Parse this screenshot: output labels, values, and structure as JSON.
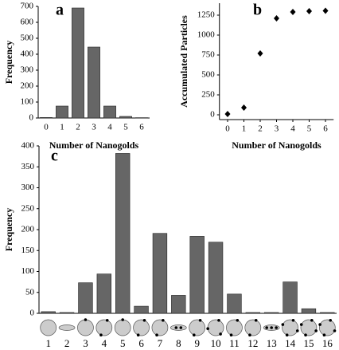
{
  "chart_data": [
    {
      "type": "bar",
      "label": "a",
      "xlabel": "Number of Nanogolds",
      "ylabel": "Frequency",
      "categories": [
        "0",
        "1",
        "2",
        "3",
        "4",
        "5",
        "6"
      ],
      "values": [
        3,
        75,
        690,
        445,
        75,
        10,
        2
      ],
      "color": "#666666",
      "ylim": [
        0,
        700
      ],
      "yticks": [
        0,
        100,
        200,
        300,
        400,
        500,
        600,
        700
      ]
    },
    {
      "type": "scatter",
      "label": "b",
      "xlabel": "Number of Nanogolds",
      "ylabel": "Accumulated Particles",
      "x": [
        0,
        1,
        2,
        3,
        4,
        5,
        6
      ],
      "values": [
        10,
        90,
        770,
        1210,
        1290,
        1300,
        1305
      ],
      "color": "#000000",
      "xlim": [
        -0.5,
        6.5
      ],
      "xticks": [
        0,
        1,
        2,
        3,
        4,
        5,
        6
      ],
      "ylim": [
        -60,
        1400
      ],
      "yticks": [
        0,
        250,
        500,
        750,
        1000,
        1250
      ]
    },
    {
      "type": "bar",
      "label": "c",
      "ylabel": "Frequency",
      "categories": [
        "1",
        "2",
        "3",
        "4",
        "5",
        "6",
        "7",
        "8",
        "9",
        "10",
        "11",
        "12",
        "13",
        "14",
        "15",
        "16"
      ],
      "values": [
        4,
        2,
        73,
        94,
        382,
        17,
        191,
        43,
        184,
        170,
        46,
        2,
        2,
        75,
        11,
        2
      ],
      "color": "#666666",
      "ylim": [
        0,
        400
      ],
      "yticks": [
        0,
        50,
        100,
        150,
        200,
        250,
        300,
        350,
        400
      ]
    }
  ]
}
